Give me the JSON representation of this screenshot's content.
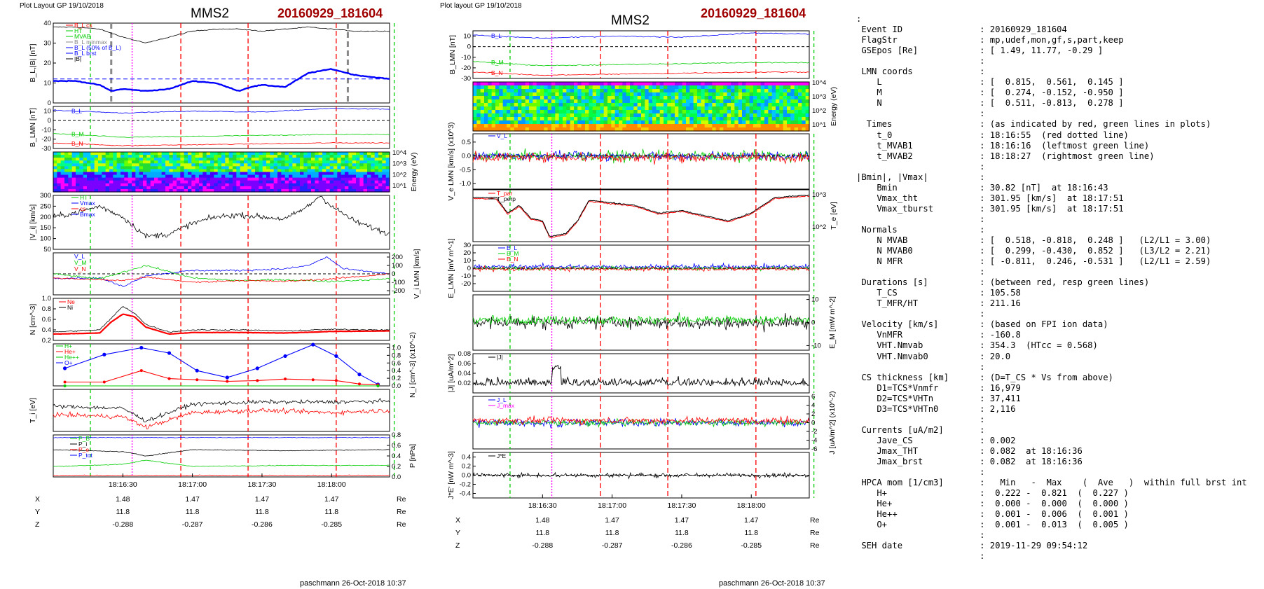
{
  "header": {
    "left": {
      "plot_label": "Plot Layout GP 19/10/2018",
      "spacecraft": "MMS2",
      "event": "20160929_181604",
      "footer": "paschmann 26-Oct-2018 10:37"
    },
    "right": {
      "plot_label": "Plot layout GP 19/10/2018",
      "spacecraft": "MMS2",
      "event": "20160929_181604",
      "footer": "paschmann 26-Oct-2018 10:37"
    }
  },
  "colors": {
    "red": "#ff0000",
    "green": "#00cc00",
    "blue": "#0000ff",
    "magenta": "#ff00ff",
    "black": "#000000",
    "grey": "#888888",
    "title_red": "#a00000"
  },
  "time_axis": {
    "ticks": [
      "18:16:30",
      "18:17:00",
      "18:17:30",
      "18:18:00"
    ],
    "tick_seconds": [
      30,
      60,
      90,
      120
    ],
    "range_seconds": [
      0,
      145
    ],
    "unit_note": "seconds after 18:16:00"
  },
  "markers": {
    "red_dashed": [
      "18:16:55",
      "18:17:24",
      "18:18:02"
    ],
    "green_dashed": [
      "18:16:16",
      "18:18:27"
    ],
    "magenta_dotted": "18:16:34",
    "grey_dashed": [
      "18:16:25",
      "18:18:07"
    ]
  },
  "position_table": {
    "rows": [
      {
        "label": "X",
        "values": [
          "1.48",
          "1.47",
          "1.47",
          "1.47"
        ],
        "unit": "Re"
      },
      {
        "label": "Y",
        "values": [
          "11.8",
          "11.8",
          "11.8",
          "11.8"
        ],
        "unit": "Re"
      },
      {
        "label": "Z",
        "values": [
          "-0.288",
          "-0.287",
          "-0.286",
          "-0.285"
        ],
        "unit": "Re"
      }
    ]
  },
  "chart_data": [
    {
      "type": "line",
      "panel": "left-1",
      "ylabel": "B_L,|B| [nT]",
      "ylim": [
        0,
        40
      ],
      "yticks": [
        0,
        10,
        20,
        30,
        40
      ],
      "legend": [
        "B_L cs",
        "HT",
        "MVAB",
        "B_L minmax",
        "B_L (50% of B_L)",
        "B_L brst",
        "|B|"
      ],
      "series": [
        {
          "name": "|B|",
          "color": "#000000",
          "t": [
            0,
            10,
            20,
            30,
            40,
            50,
            60,
            70,
            80,
            90,
            100,
            110,
            120,
            130,
            145
          ],
          "values": [
            38,
            38,
            37,
            33,
            30,
            33,
            36,
            37,
            37,
            36,
            37,
            38,
            37,
            36,
            36
          ]
        },
        {
          "name": "B_L brst",
          "color": "#0000ff",
          "t": [
            0,
            10,
            20,
            25,
            30,
            40,
            50,
            55,
            60,
            70,
            80,
            85,
            90,
            100,
            110,
            120,
            130,
            145
          ],
          "values": [
            11,
            11,
            9,
            6,
            7,
            6,
            7,
            9,
            11,
            10,
            6,
            8,
            9,
            8,
            15,
            17,
            14,
            12
          ]
        }
      ],
      "reference_line": 12
    },
    {
      "type": "line",
      "panel": "left-2",
      "ylabel": "B_LMN [nT]",
      "ylim": [
        -30,
        15
      ],
      "yticks": [
        -30,
        -20,
        -10,
        0,
        10
      ],
      "legend": [
        "B_L",
        "B_M",
        "B_N"
      ],
      "series": [
        {
          "name": "B_L",
          "color": "#0000ff",
          "t": [
            0,
            30,
            60,
            90,
            120,
            145
          ],
          "values": [
            11,
            8,
            10,
            9,
            13,
            12
          ]
        },
        {
          "name": "B_M",
          "color": "#00cc00",
          "t": [
            0,
            30,
            60,
            90,
            120,
            145
          ],
          "values": [
            -14,
            -18,
            -17,
            -16,
            -15,
            -15
          ]
        },
        {
          "name": "B_N",
          "color": "#ff0000",
          "t": [
            0,
            30,
            60,
            90,
            120,
            145
          ],
          "values": [
            -24,
            -27,
            -26,
            -25,
            -24,
            -24
          ]
        }
      ]
    },
    {
      "type": "heatmap",
      "panel": "left-3",
      "ylabel": "Energy (eV)",
      "yticks": [
        "10^1",
        "10^2",
        "10^3",
        "10^4"
      ],
      "ylim": [
        10,
        30000
      ]
    },
    {
      "type": "line",
      "panel": "left-4",
      "ylabel": "|V_i| [km/s]",
      "ylim": [
        50,
        300
      ],
      "yticks": [
        50,
        100,
        150,
        200,
        250,
        300
      ],
      "legend": [
        "HT",
        "Vmax",
        "cs",
        "Bmax"
      ],
      "series": [
        {
          "name": "|V_i|",
          "color": "#000000",
          "t": [
            0,
            10,
            20,
            30,
            40,
            50,
            60,
            70,
            80,
            90,
            100,
            110,
            115,
            120,
            130,
            145
          ],
          "values": [
            200,
            220,
            250,
            200,
            110,
            120,
            170,
            200,
            210,
            200,
            190,
            250,
            300,
            250,
            180,
            120
          ]
        }
      ]
    },
    {
      "type": "line",
      "panel": "left-5",
      "ylabel": "V_i LMN [km/s]",
      "ylim": [
        -250,
        250
      ],
      "yticks": [
        -200,
        -100,
        0,
        100,
        200
      ],
      "legend": [
        "V_L",
        "V_M",
        "V_N"
      ],
      "series": [
        {
          "name": "V_L",
          "color": "#0000ff",
          "t": [
            0,
            20,
            30,
            40,
            60,
            80,
            100,
            110,
            118,
            125,
            145
          ],
          "values": [
            -50,
            -50,
            -150,
            -20,
            40,
            40,
            60,
            100,
            200,
            60,
            0
          ]
        },
        {
          "name": "V_M",
          "color": "#00cc00",
          "t": [
            0,
            20,
            30,
            40,
            60,
            80,
            100,
            120,
            145
          ],
          "values": [
            0,
            -60,
            20,
            100,
            -50,
            -80,
            -70,
            -90,
            -60
          ]
        },
        {
          "name": "V_N",
          "color": "#ff0000",
          "t": [
            0,
            20,
            30,
            40,
            60,
            80,
            100,
            120,
            145
          ],
          "values": [
            -50,
            -70,
            -80,
            -40,
            -100,
            -80,
            -90,
            -60,
            0
          ]
        }
      ]
    },
    {
      "type": "line",
      "panel": "left-6",
      "ylabel": "N [cm^-3]",
      "ylim": [
        0.2,
        1.0
      ],
      "yticks": [
        0.2,
        0.4,
        0.6,
        0.8,
        1.0
      ],
      "legend": [
        "Ne",
        "Ni"
      ],
      "series": [
        {
          "name": "Ne",
          "color": "#ff0000",
          "t": [
            0,
            20,
            25,
            30,
            35,
            40,
            50,
            60,
            80,
            100,
            120,
            145
          ],
          "values": [
            0.32,
            0.34,
            0.55,
            0.7,
            0.65,
            0.45,
            0.32,
            0.35,
            0.35,
            0.34,
            0.37,
            0.38
          ]
        },
        {
          "name": "Ni",
          "color": "#000000",
          "t": [
            0,
            20,
            25,
            30,
            35,
            40,
            50,
            60,
            80,
            100,
            120,
            145
          ],
          "values": [
            0.36,
            0.4,
            0.62,
            0.85,
            0.72,
            0.5,
            0.36,
            0.4,
            0.4,
            0.38,
            0.41,
            0.4
          ]
        }
      ]
    },
    {
      "type": "line",
      "panel": "left-7",
      "ylabel": "N_i [cm^-3] (x10^-2)",
      "ylim": [
        0,
        1.1
      ],
      "yticks": [
        0.0,
        0.2,
        0.4,
        0.6,
        0.8,
        1.0
      ],
      "legend": [
        "H+",
        "He+",
        "He++",
        "O+"
      ],
      "series": [
        {
          "name": "O+",
          "color": "#0000ff",
          "t": [
            5,
            22,
            38,
            50,
            62,
            75,
            88,
            100,
            112,
            122,
            132,
            140
          ],
          "values": [
            0.46,
            0.82,
            1.0,
            0.86,
            0.4,
            0.22,
            0.46,
            0.78,
            1.08,
            0.78,
            0.3,
            0.04
          ]
        },
        {
          "name": "He++",
          "color": "#ff0000",
          "t": [
            5,
            22,
            38,
            50,
            62,
            75,
            88,
            100,
            112,
            122,
            132,
            140
          ],
          "values": [
            0.1,
            0.1,
            0.4,
            0.19,
            0.16,
            0.12,
            0.14,
            0.18,
            0.16,
            0.14,
            0.05,
            0.03
          ]
        },
        {
          "name": "He+",
          "color": "#00cc00",
          "t": [
            5,
            140
          ],
          "values": [
            0.0,
            0.0
          ]
        }
      ]
    },
    {
      "type": "line",
      "panel": "left-8",
      "ylabel": "T_i [eV]",
      "series": [
        {
          "name": "T_i",
          "color": "#000000",
          "t": [
            0,
            30,
            40,
            60,
            90,
            120,
            145
          ],
          "values": [
            0.6,
            0.55,
            0.25,
            0.65,
            0.7,
            0.7,
            0.72
          ]
        },
        {
          "name": "T_e",
          "color": "#ff0000",
          "t": [
            0,
            30,
            40,
            60,
            90,
            120,
            145
          ],
          "values": [
            0.4,
            0.35,
            0.1,
            0.45,
            0.5,
            0.45,
            0.5
          ]
        }
      ]
    },
    {
      "type": "line",
      "panel": "left-9",
      "ylabel": "P [nPa]",
      "ylim": [
        0,
        0.8
      ],
      "yticks": [
        0.0,
        0.2,
        0.4,
        0.6,
        0.8
      ],
      "legend": [
        "P_B",
        "P_i",
        "P_e",
        "P_tot"
      ],
      "series": [
        {
          "name": "P_tot",
          "color": "#0000ff",
          "t": [
            0,
            145
          ],
          "values": [
            0.75,
            0.75
          ]
        },
        {
          "name": "P_i",
          "color": "#000000",
          "t": [
            0,
            30,
            40,
            60,
            100,
            145
          ],
          "values": [
            0.52,
            0.48,
            0.4,
            0.52,
            0.5,
            0.52
          ]
        },
        {
          "name": "P_B",
          "color": "#00cc00",
          "t": [
            0,
            30,
            40,
            60,
            100,
            145
          ],
          "values": [
            0.2,
            0.24,
            0.32,
            0.2,
            0.22,
            0.22
          ]
        },
        {
          "name": "P_e",
          "color": "#ff0000",
          "t": [
            0,
            145
          ],
          "values": [
            0.03,
            0.03
          ]
        }
      ]
    },
    {
      "type": "line",
      "panel": "right-1",
      "ylabel": "B_LMN [nT]",
      "ylim": [
        -30,
        15
      ],
      "yticks": [
        -30,
        -20,
        -10,
        0,
        10
      ],
      "legend": [
        "B_L",
        "B_M",
        "B_N"
      ],
      "series": [
        {
          "name": "B_L",
          "color": "#0000ff",
          "t": [
            0,
            30,
            60,
            90,
            120,
            145
          ],
          "values": [
            11,
            8,
            10,
            9,
            13,
            12
          ]
        },
        {
          "name": "B_M",
          "color": "#00cc00",
          "t": [
            0,
            30,
            60,
            90,
            120,
            145
          ],
          "values": [
            -14,
            -18,
            -17,
            -16,
            -15,
            -15
          ]
        },
        {
          "name": "B_N",
          "color": "#ff0000",
          "t": [
            0,
            30,
            60,
            90,
            120,
            145
          ],
          "values": [
            -24,
            -27,
            -26,
            -25,
            -24,
            -24
          ]
        }
      ]
    },
    {
      "type": "heatmap",
      "panel": "right-2",
      "ylabel": "Energy (eV)",
      "yticks": [
        "10^1",
        "10^2",
        "10^3",
        "10^4"
      ]
    },
    {
      "type": "line",
      "panel": "right-3",
      "ylabel": "V_e LMN [km/s] (x10^3)",
      "ylim": [
        -1.2,
        0.8
      ],
      "yticks": [
        -1.0,
        -0.5,
        0.0,
        0.5
      ],
      "legend": [
        "V_L"
      ]
    },
    {
      "type": "line",
      "panel": "right-4",
      "ylabel": "T_e [eV]",
      "yticks": [
        "10^2",
        "10^3"
      ],
      "legend": [
        "T_par",
        "T_perp"
      ],
      "series": [
        {
          "name": "T_e",
          "color": "#000000",
          "t": [
            0,
            10,
            15,
            20,
            25,
            30,
            33,
            40,
            45,
            50,
            60,
            70,
            80,
            90,
            100,
            110,
            120,
            130,
            145
          ],
          "values": [
            0.85,
            0.85,
            0.55,
            0.7,
            0.45,
            0.4,
            0.1,
            0.15,
            0.4,
            0.8,
            0.75,
            0.7,
            0.55,
            0.6,
            0.5,
            0.4,
            0.55,
            0.85,
            0.9
          ]
        }
      ]
    },
    {
      "type": "line",
      "panel": "right-5",
      "ylabel": "E_LMN [mV m^-1]",
      "ylim": [
        -30,
        30
      ],
      "yticks": [
        -20,
        -10,
        0,
        10,
        20,
        30
      ],
      "legend": [
        "E_L",
        "E_M",
        "E_N"
      ]
    },
    {
      "type": "line",
      "panel": "right-6",
      "ylabel": "E_M [mW m^-2]",
      "ylim": [
        -12,
        12
      ],
      "yticks": [
        -10,
        0,
        10
      ]
    },
    {
      "type": "line",
      "panel": "right-7",
      "ylabel": "|J| [uA/m^2]",
      "ylim": [
        0.0,
        0.08
      ],
      "yticks": [
        0.02,
        0.04,
        0.06,
        0.08
      ],
      "legend": [
        "|J|"
      ]
    },
    {
      "type": "line",
      "panel": "right-8",
      "ylabel": "J [uA/m^2] (x10^-2)",
      "ylim": [
        -6,
        6
      ],
      "yticks": [
        -6,
        -4,
        -2,
        0,
        2,
        4,
        6
      ],
      "legend": [
        "J_L",
        "J_max"
      ]
    },
    {
      "type": "line",
      "panel": "right-9",
      "ylabel": "J*E' [nW m^-3]",
      "ylim": [
        -0.5,
        0.5
      ],
      "yticks": [
        -0.4,
        -0.2,
        0.0,
        0.2,
        0.4
      ],
      "legend": [
        "J*E"
      ]
    }
  ],
  "info_panel": {
    "lines": [
      ":",
      " Event ID               : 20160929_181604",
      " FlagStr                : mp,udef,mon,gf,s,part,keep",
      " GSEpos [Re]            : [ 1.49, 11.77, -0.29 ]",
      "                        :",
      " LMN coords             :",
      "    L                   : [  0.815,  0.561,  0.145 ]",
      "    M                   : [  0.274, -0.152, -0.950 ]",
      "    N                   : [  0.511, -0.813,  0.278 ]",
      "                        :",
      "  Times                 : (as indicated by red, green lines in plots)",
      "    t_0                 : 18:16:55  (red dotted line)",
      "    t_MVAB1             : 18:16:16  (leftmost green line)",
      "    t_MVAB2             : 18:18:27  (rightmost green line)",
      "                        :",
      "|Bmin|, |Vmax|          :",
      "    Bmin                : 30.82 [nT]  at 18:16:43",
      "    Vmax_tht            : 301.95 [km/s]  at 18:17:51",
      "    Vmax_tburst         : 301.95 [km/s]  at 18:17:51",
      "                        :",
      " Normals                :",
      "    N MVAB              : [  0.518, -0.818,  0.248 ]   (L2/L1 = 3.00)",
      "    N MVAB0             : [  0.299, -0.430,  0.852 ]   (L3/L2 = 2.21)",
      "    N MFR               : [ -0.811,  0.246, -0.531 ]   (L2/L1 = 2.59)",
      "                        :",
      " Durations [s]          : (between red, resp green lines)",
      "    T_CS                : 105.58",
      "    T_MFR/HT            : 211.16",
      "                        :",
      " Velocity [km/s]        : (based on FPI ion data)",
      "    VnMFR               : -160.8",
      "    VHT.Nmvab           : 354.3  (HTcc = 0.568)",
      "    VHT.Nmvab0          : 20.0",
      "                        :",
      " CS thickness [km]      : (D=T_CS * Vs from above)",
      "    D1=TCS*Vnmfr        : 16,979",
      "    D2=TCS*VHTn         : 37,411",
      "    D3=TCS*VHTn0        : 2,116",
      "                        :",
      " Currents [uA/m2]       :",
      "    Jave_CS             : 0.002",
      "    Jmax_THT            : 0.082  at 18:16:36",
      "    Jmax_brst           : 0.082  at 18:16:36",
      "                        :",
      " HPCA mom [1/cm3]       :   Min   -  Max    (  Ave   )  within full brst int",
      "    H+                  :  0.222 -  0.821  (  0.227 )",
      "    He+                 :  0.000 -  0.000  (  0.000 )",
      "    He++                :  0.001 -  0.006  (  0.001 )",
      "    O+                  :  0.001 -  0.013  (  0.005 )",
      "                        :",
      " SEH date               : 2019-11-29 09:54:12",
      "                        :"
    ]
  }
}
